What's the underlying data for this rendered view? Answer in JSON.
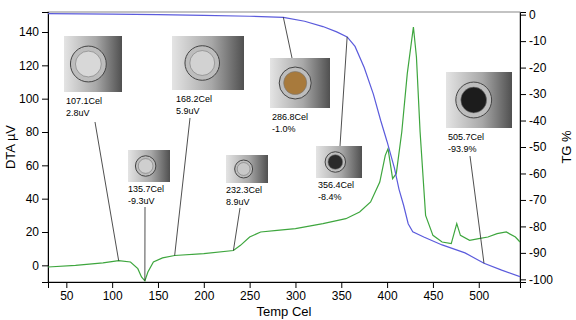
{
  "chart_data": {
    "type": "line",
    "xlabel": "Temp Cel",
    "ylabel": "DTA µV",
    "y2label": "TG %",
    "xlim": [
      30,
      545
    ],
    "xticks": [
      50,
      100,
      150,
      200,
      250,
      300,
      350,
      400,
      450,
      500
    ],
    "ylim": [
      -10,
      152
    ],
    "yticks": [
      0,
      20,
      40,
      60,
      80,
      100,
      120,
      140
    ],
    "y2lim": [
      -101,
      1
    ],
    "y2ticks": [
      0,
      -10,
      -20,
      -30,
      -40,
      -50,
      -60,
      -70,
      -80,
      -90,
      -100
    ],
    "grid": false,
    "series": [
      {
        "color": "#3ea63e",
        "x": [
          30,
          60,
          90,
          107.1,
          120,
          128,
          132,
          135.7,
          139,
          145,
          155,
          168.2,
          200,
          232.3,
          240,
          250,
          262,
          280,
          300,
          330,
          355,
          370,
          382,
          392,
          398,
          401,
          406,
          410,
          416,
          422,
          428.7,
          432,
          436,
          442,
          450,
          460,
          470,
          476,
          480,
          490,
          500,
          510,
          520,
          530,
          540,
          545
        ],
        "values": [
          -1,
          0,
          1.5,
          2.8,
          2,
          -2,
          -7,
          -9.3,
          -4,
          2,
          4.5,
          5.9,
          7,
          8.9,
          12,
          17,
          20,
          21,
          22,
          25,
          28,
          32,
          38,
          50,
          66,
          70,
          52,
          55,
          80,
          115,
          143,
          125,
          80,
          30,
          18,
          14,
          13,
          25,
          18,
          15,
          16,
          17,
          19,
          20,
          17,
          14
        ]
      },
      {
        "color": "#5b5bdc",
        "axis": "y2",
        "x": [
          30,
          100,
          150,
          200,
          250,
          286.8,
          310,
          330,
          345,
          356.4,
          365,
          375,
          385,
          393,
          400,
          408,
          413,
          418,
          423,
          428,
          440,
          460,
          485,
          505.7,
          525,
          545
        ],
        "values": [
          0.4,
          0.2,
          0,
          -0.3,
          -0.6,
          -1.0,
          -2.5,
          -4.5,
          -6.5,
          -8.4,
          -12,
          -20,
          -30,
          -40,
          -48,
          -58,
          -66,
          -72,
          -79,
          -82,
          -84,
          -87,
          -90,
          -93.9,
          -96.5,
          -99
        ]
      }
    ],
    "annotations": [
      {
        "text": [
          "107.1Cel",
          "2.8uV"
        ],
        "x": 107.1,
        "y": 2.8,
        "axis": "y"
      },
      {
        "text": [
          "135.7Cel",
          "-9.3uV"
        ],
        "x": 135.7,
        "y": -9.3,
        "axis": "y"
      },
      {
        "text": [
          "168.2Cel",
          "5.9uV"
        ],
        "x": 168.2,
        "y": 5.9,
        "axis": "y"
      },
      {
        "text": [
          "232.3Cel",
          "8.9uV"
        ],
        "x": 232.3,
        "y": 8.9,
        "axis": "y"
      },
      {
        "text": [
          "286.8Cel",
          "-1.0%"
        ],
        "x": 286.8,
        "y": -1.0,
        "axis": "y2"
      },
      {
        "text": [
          "356.4Cel",
          "-8.4%"
        ],
        "x": 356.4,
        "y": -8.4,
        "axis": "y2"
      },
      {
        "text": [
          "505.7Cel",
          "-93.9%"
        ],
        "x": 505.7,
        "y": -93.9,
        "axis": "y2"
      }
    ]
  }
}
